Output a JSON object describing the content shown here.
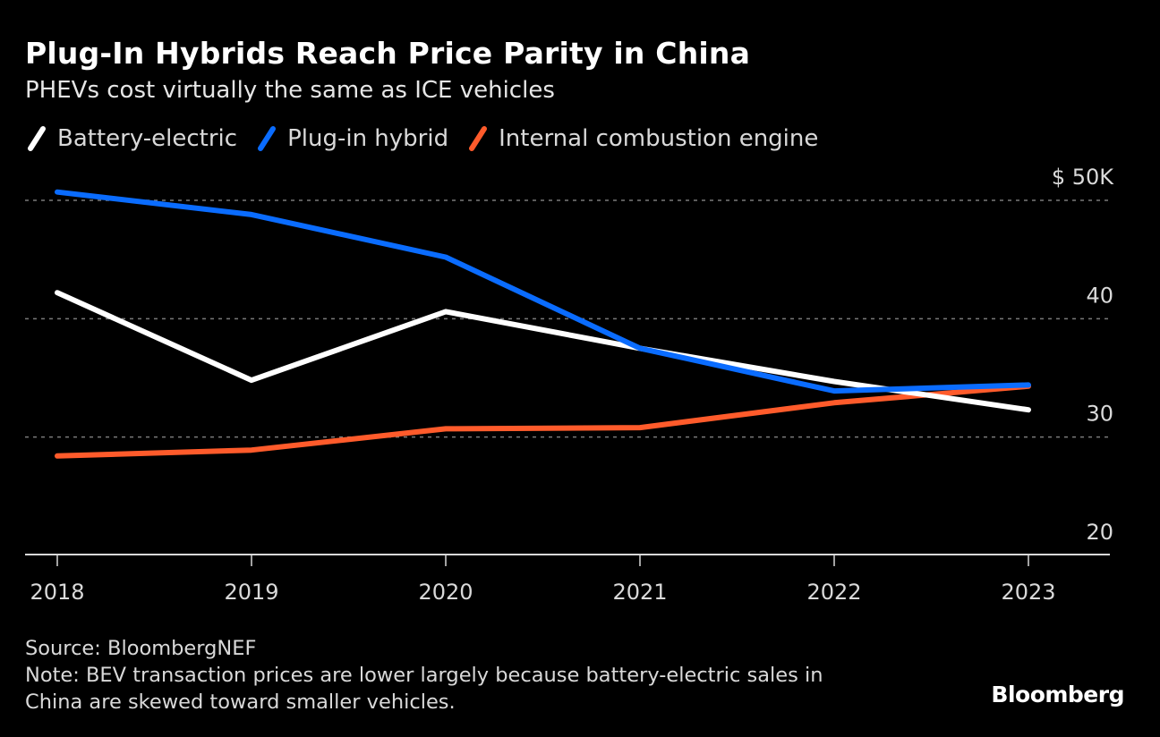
{
  "title": "Plug-In Hybrids Reach Price Parity in China",
  "subtitle": "PHEVs cost virtually the same as ICE vehicles",
  "source": "Source: BloombergNEF",
  "note_line1": "Note: BEV transaction prices are lower largely because battery-electric sales in",
  "note_line2": "China are skewed toward smaller vehicles.",
  "brand": "Bloomberg",
  "chart_data": {
    "type": "line",
    "title": "Plug-In Hybrids Reach Price Parity in China",
    "subtitle": "PHEVs cost virtually the same as ICE vehicles",
    "xlabel": "",
    "ylabel": "",
    "x": [
      "2018",
      "2019",
      "2020",
      "2021",
      "2022",
      "2023"
    ],
    "ylim": [
      20,
      50
    ],
    "yticks": [
      50,
      40,
      30,
      20
    ],
    "ytick_labels": [
      "$ 50K",
      "40",
      "30",
      "20"
    ],
    "grid": true,
    "legend_position": "top-left",
    "series": [
      {
        "name": "Battery-electric",
        "color": "#ffffff",
        "values": [
          42.2,
          34.8,
          40.6,
          37.5,
          34.7,
          32.3
        ]
      },
      {
        "name": "Plug-in hybrid",
        "color": "#0a6cff",
        "values": [
          50.7,
          48.8,
          45.2,
          37.5,
          33.9,
          34.4
        ]
      },
      {
        "name": "Internal combustion engine",
        "color": "#ff5b2b",
        "values": [
          28.4,
          28.9,
          30.7,
          30.8,
          32.9,
          34.3
        ]
      }
    ]
  }
}
